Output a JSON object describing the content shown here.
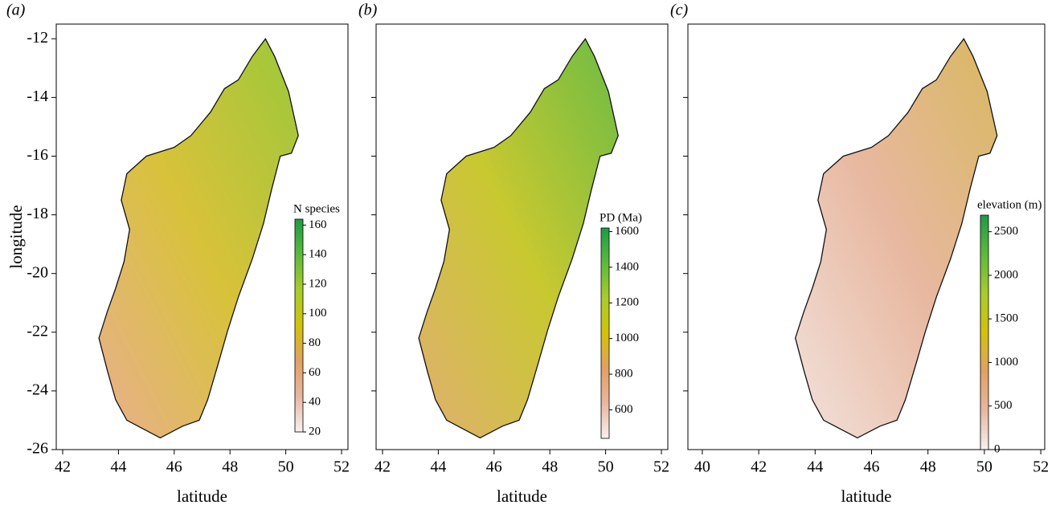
{
  "chart_data": [
    {
      "type": "map",
      "panel_label": "(a)",
      "xlabel": "latitude",
      "ylabel": "longitude",
      "xlim": [
        41.77,
        52.23
      ],
      "ylim": [
        -26,
        -11.5
      ],
      "xticks": [
        42,
        44,
        46,
        48,
        50,
        52
      ],
      "yticks": [
        -26,
        -24,
        -22,
        -20,
        -18,
        -16,
        -14,
        -12
      ],
      "ytick_labels": true,
      "fill": [
        "#e8b08e",
        "#d8c23a",
        "#9cc83a"
      ],
      "colorbar": {
        "label": "N species",
        "lim": [
          20,
          164
        ],
        "ticks": [
          20,
          40,
          60,
          80,
          100,
          120,
          140,
          160
        ],
        "colors": [
          "#f7f0f0",
          "#e8b7a0",
          "#e2a062",
          "#d2c20a",
          "#a8cc2a",
          "#5cba3c",
          "#1e9a46"
        ]
      }
    },
    {
      "type": "map",
      "panel_label": "(b)",
      "xlabel": "latitude",
      "xlim": [
        41.77,
        52.23
      ],
      "ylim": [
        -26,
        -11.5
      ],
      "xticks": [
        42,
        44,
        46,
        48,
        50,
        52
      ],
      "yticks": [
        -24,
        -22,
        -20,
        -18,
        -16,
        -14
      ],
      "ytick_labels": false,
      "fill": [
        "#e0b070",
        "#c8c830",
        "#6cbc44"
      ],
      "colorbar": {
        "label": "PD (Ma)",
        "lim": [
          440,
          1620
        ],
        "ticks": [
          600,
          800,
          1000,
          1200,
          1400,
          1600
        ],
        "colors": [
          "#f7f0f0",
          "#e8b7a0",
          "#e2a062",
          "#d2c20a",
          "#a8cc2a",
          "#5cba3c",
          "#1e9a46"
        ]
      }
    },
    {
      "type": "map",
      "panel_label": "(c)",
      "xlabel": "latitude",
      "xlim": [
        39.49,
        52.14
      ],
      "ylim": [
        -26,
        -11.5
      ],
      "xticks": [
        40,
        42,
        44,
        46,
        48,
        50,
        52
      ],
      "yticks": [
        -24,
        -22,
        -20,
        -18,
        -16,
        -14
      ],
      "ytick_labels": false,
      "fill": [
        "#f2e2dc",
        "#e8b8a0",
        "#d8b860"
      ],
      "colorbar": {
        "label": "elevation (m)",
        "lim": [
          0,
          2690
        ],
        "ticks": [
          0,
          500,
          1000,
          1500,
          2000,
          2500
        ],
        "colors": [
          "#f7f0f0",
          "#e8b7a0",
          "#e2a062",
          "#d2c20a",
          "#a8cc2a",
          "#5cba3c",
          "#1e9a46"
        ]
      }
    }
  ]
}
